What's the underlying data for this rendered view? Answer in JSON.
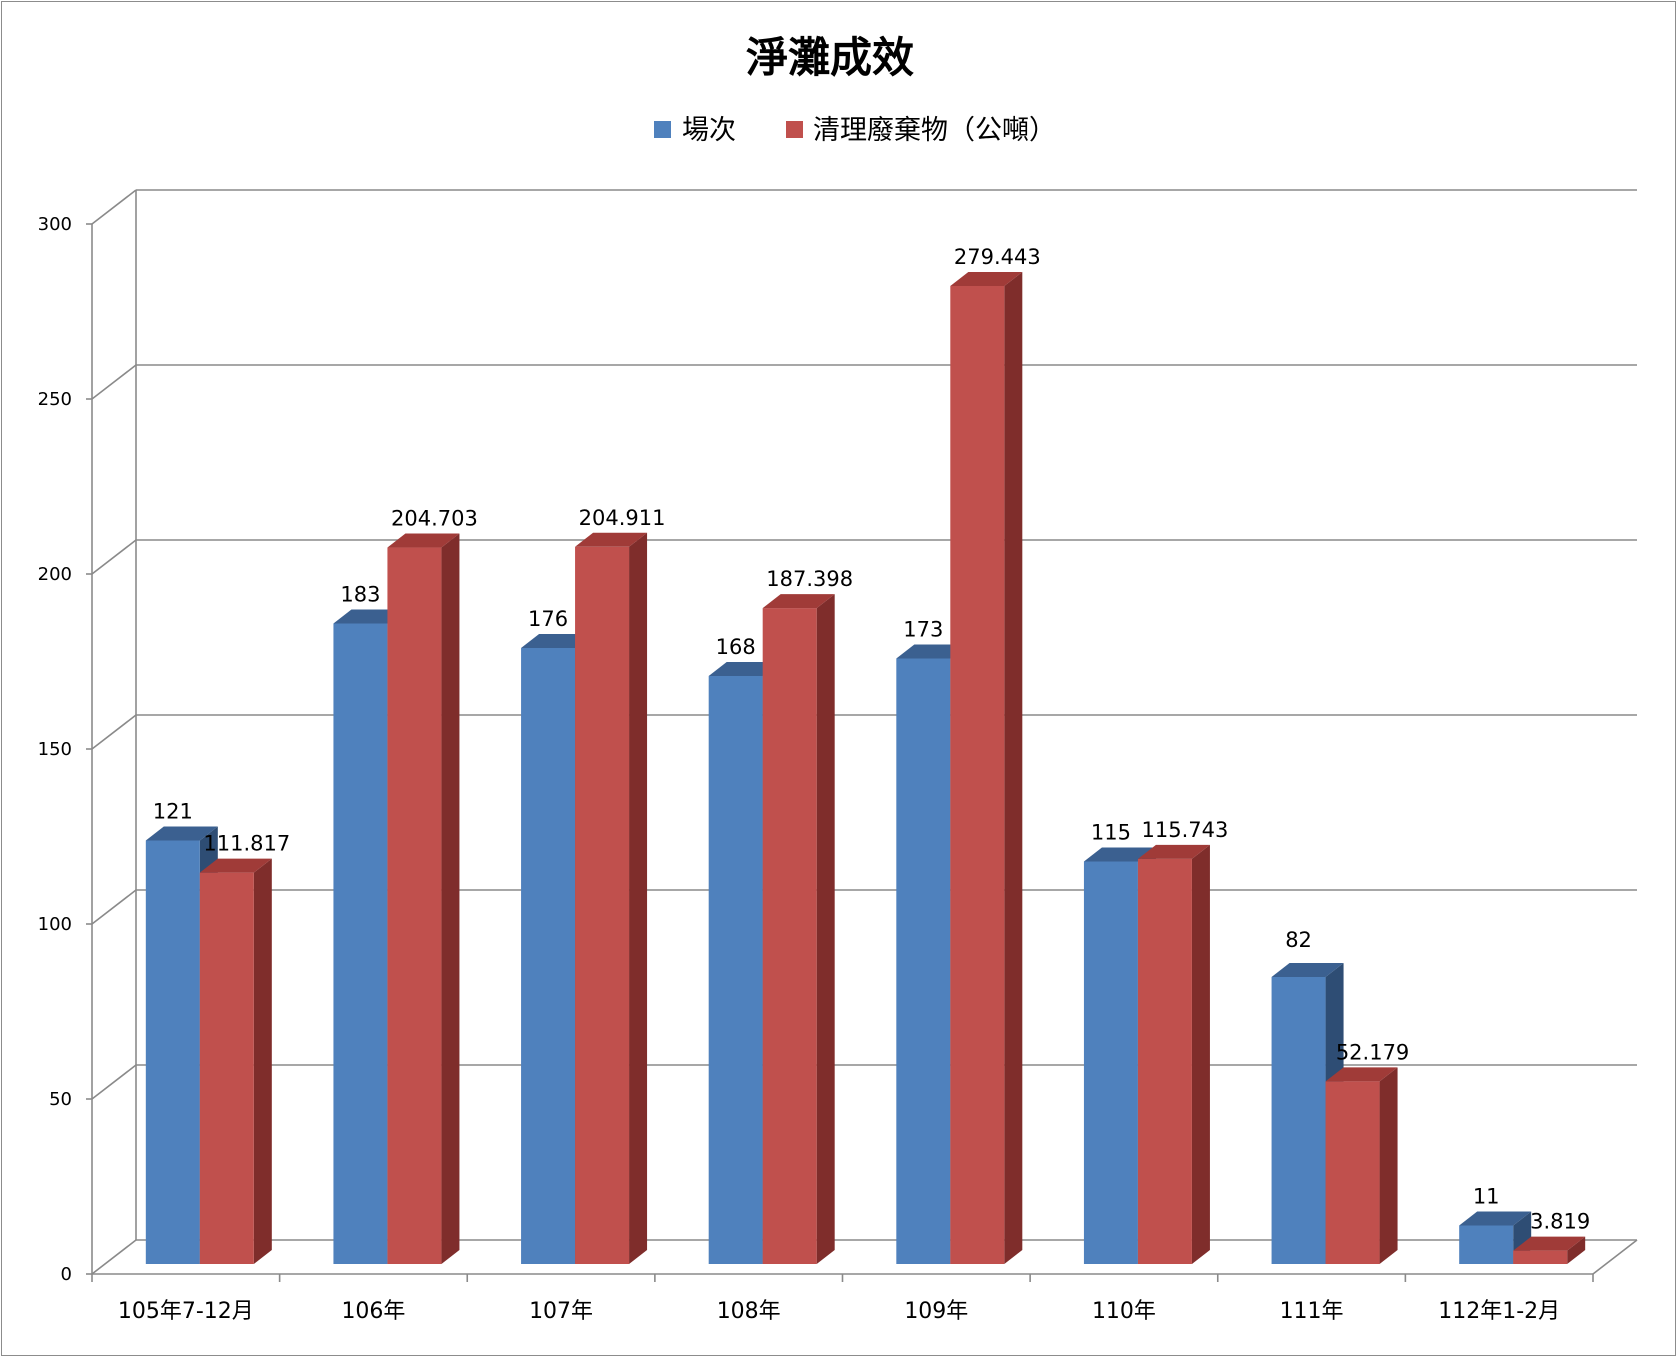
{
  "chart_data": {
    "type": "bar",
    "title": "淨灘成效",
    "categories": [
      "105年7-12月",
      "106年",
      "107年",
      "108年",
      "109年",
      "110年",
      "111年",
      "112年1-2月"
    ],
    "series": [
      {
        "name": "場次",
        "values": [
          121,
          183,
          176,
          168,
          173,
          115,
          82,
          11
        ],
        "labels": [
          "121",
          "183",
          "176",
          "168",
          "173",
          "115",
          "82",
          "11"
        ],
        "color": "#4f81bd",
        "top_color": "#3b6090",
        "side_color": "#2e4d74"
      },
      {
        "name": "清理廢棄物（公噸）",
        "values": [
          111.817,
          204.703,
          204.911,
          187.398,
          279.443,
          115.743,
          52.179,
          3.819
        ],
        "labels": [
          "111.817",
          "204.703",
          "204.911",
          "187.398",
          "279.443",
          "115.743",
          "52.179",
          "3.819"
        ],
        "color": "#c0504d",
        "top_color": "#a03b38",
        "side_color": "#7f2d2b"
      }
    ],
    "ylim": [
      0,
      300
    ],
    "yticks": [
      "0",
      "50",
      "100",
      "150",
      "200",
      "250",
      "300"
    ],
    "xlabel": "",
    "ylabel": "",
    "grid": true,
    "legend": "top-center",
    "style": "3d-clustered-column"
  }
}
